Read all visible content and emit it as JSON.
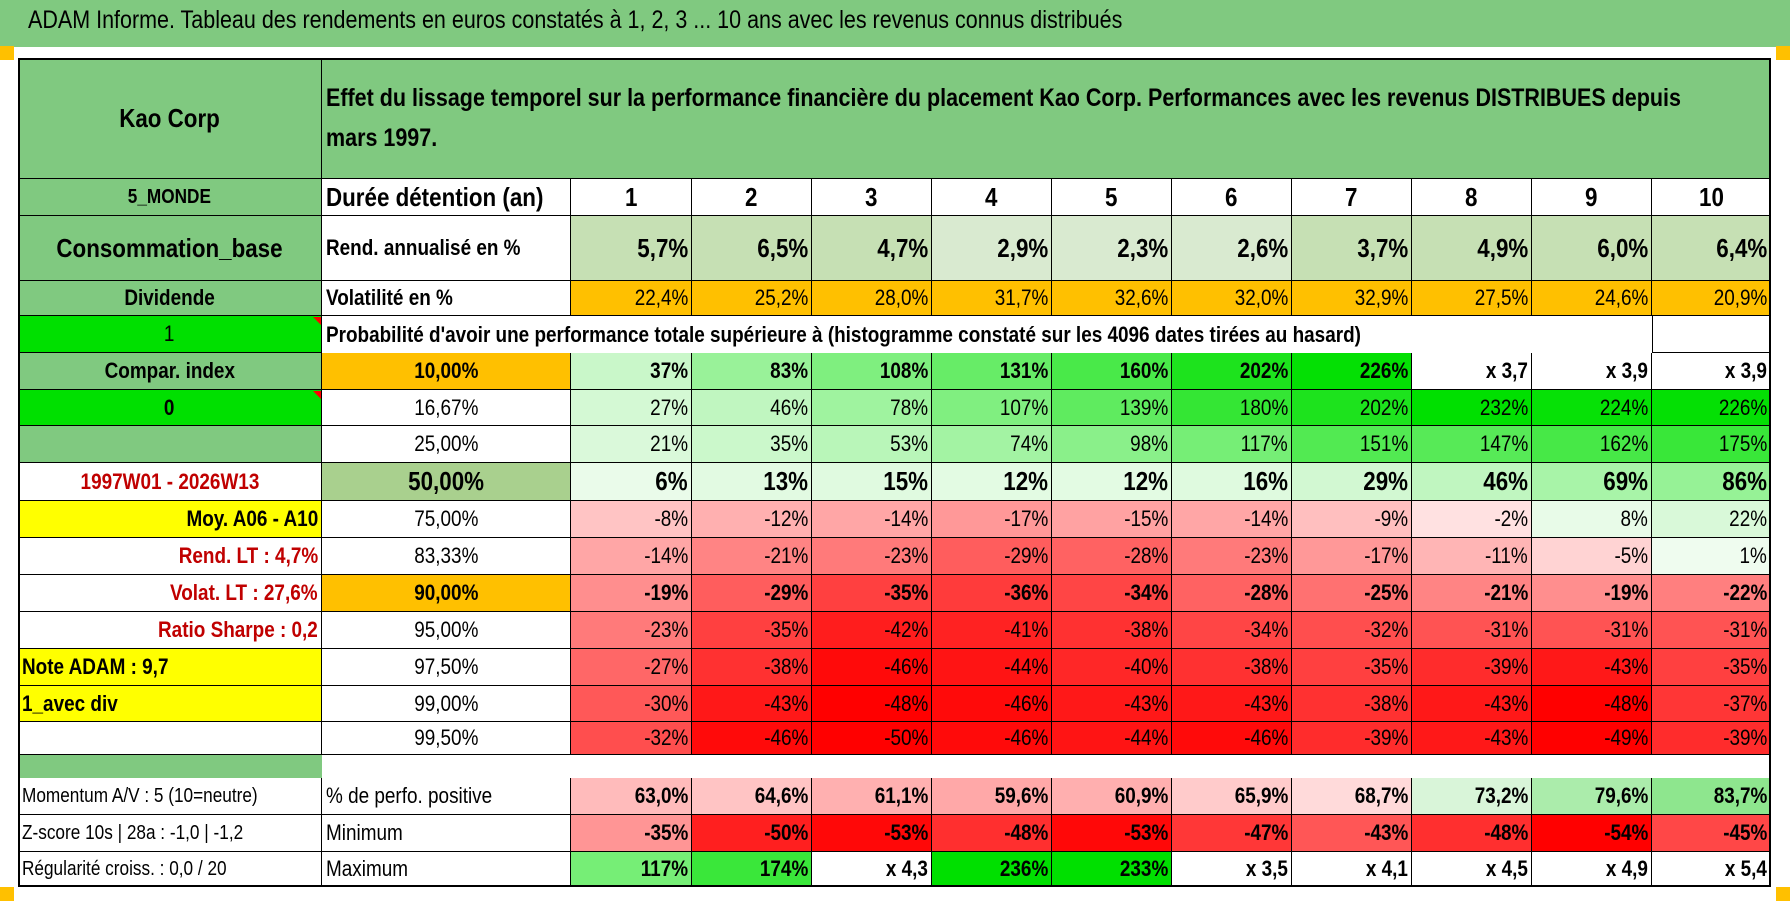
{
  "title": "ADAM Informe. Tableau des rendements en euros constatés à 1, 2, 3 ... 10 ans avec les revenus connus distribués",
  "header": {
    "name": "Kao Corp",
    "description_line1": "Effet du lissage temporel sur la performance financière du placement Kao Corp. Performances avec les revenus DISTRIBUES depuis",
    "description_line2": "mars 1997."
  },
  "left_labels": {
    "region": "5_MONDE",
    "sector": "Consommation_base",
    "strategy": "Dividende",
    "indicator_1": "1",
    "compar_index": "Compar. index",
    "indicator_0": "0",
    "period": "1997W01 - 2026W13",
    "moy": "Moy. A06 - A10",
    "rend_lt": "Rend. LT :   4,7%",
    "volat_lt": "Volat. LT :   27,6%",
    "sharpe": "Ratio Sharpe :    0,2",
    "note": "Note ADAM : 9,7",
    "div_mode": "1_avec div"
  },
  "row_labels": {
    "duration": "Durée détention (an)",
    "rend": "Rend. annualisé en %",
    "volat": "Volatilité en %",
    "proba": "Probabilité d'avoir une performance totale supérieure à (histogramme constaté sur les 4096 dates tirées au hasard)"
  },
  "years": [
    "1",
    "2",
    "3",
    "4",
    "5",
    "6",
    "7",
    "8",
    "9",
    "10"
  ],
  "rend": [
    "5,7%",
    "6,5%",
    "4,7%",
    "2,9%",
    "2,3%",
    "2,6%",
    "3,7%",
    "4,9%",
    "6,0%",
    "6,4%"
  ],
  "volat": [
    "22,4%",
    "25,2%",
    "28,0%",
    "31,7%",
    "32,6%",
    "32,0%",
    "32,9%",
    "27,5%",
    "24,6%",
    "20,9%"
  ],
  "percentiles": [
    {
      "p": "10,00%",
      "vals": [
        "37%",
        "83%",
        "108%",
        "131%",
        "160%",
        "202%",
        "226%",
        "x 3,7",
        "x 3,9",
        "x 3,9"
      ]
    },
    {
      "p": "16,67%",
      "vals": [
        "27%",
        "46%",
        "78%",
        "107%",
        "139%",
        "180%",
        "202%",
        "232%",
        "224%",
        "226%"
      ]
    },
    {
      "p": "25,00%",
      "vals": [
        "21%",
        "35%",
        "53%",
        "74%",
        "98%",
        "117%",
        "151%",
        "147%",
        "162%",
        "175%"
      ]
    },
    {
      "p": "50,00%",
      "vals": [
        "6%",
        "13%",
        "15%",
        "12%",
        "12%",
        "16%",
        "29%",
        "46%",
        "69%",
        "86%"
      ]
    },
    {
      "p": "75,00%",
      "vals": [
        "-8%",
        "-12%",
        "-14%",
        "-17%",
        "-15%",
        "-14%",
        "-9%",
        "-2%",
        "8%",
        "22%"
      ]
    },
    {
      "p": "83,33%",
      "vals": [
        "-14%",
        "-21%",
        "-23%",
        "-29%",
        "-28%",
        "-23%",
        "-17%",
        "-11%",
        "-5%",
        "1%"
      ]
    },
    {
      "p": "90,00%",
      "vals": [
        "-19%",
        "-29%",
        "-35%",
        "-36%",
        "-34%",
        "-28%",
        "-25%",
        "-21%",
        "-19%",
        "-22%"
      ]
    },
    {
      "p": "95,00%",
      "vals": [
        "-23%",
        "-35%",
        "-42%",
        "-41%",
        "-38%",
        "-34%",
        "-32%",
        "-31%",
        "-31%",
        "-31%"
      ]
    },
    {
      "p": "97,50%",
      "vals": [
        "-27%",
        "-38%",
        "-46%",
        "-44%",
        "-40%",
        "-38%",
        "-35%",
        "-39%",
        "-43%",
        "-35%"
      ]
    },
    {
      "p": "99,00%",
      "vals": [
        "-30%",
        "-43%",
        "-48%",
        "-46%",
        "-43%",
        "-43%",
        "-38%",
        "-43%",
        "-48%",
        "-37%"
      ]
    },
    {
      "p": "99,50%",
      "vals": [
        "-32%",
        "-46%",
        "-50%",
        "-46%",
        "-44%",
        "-46%",
        "-39%",
        "-43%",
        "-49%",
        "-39%"
      ]
    }
  ],
  "bottom": [
    {
      "left": "Momentum A/V : 5 (10=neutre)",
      "label": "% de perfo. positive",
      "vals": [
        "63,0%",
        "64,6%",
        "61,1%",
        "59,6%",
        "60,9%",
        "65,9%",
        "68,7%",
        "73,2%",
        "79,6%",
        "83,7%"
      ]
    },
    {
      "left": "Z-score 10s | 28a : -1,0 | -1,2",
      "label": "Minimum",
      "vals": [
        "-35%",
        "-50%",
        "-53%",
        "-48%",
        "-53%",
        "-47%",
        "-43%",
        "-48%",
        "-54%",
        "-45%"
      ]
    },
    {
      "left": "Régularité croiss. : 0,0 / 20",
      "label": "Maximum",
      "vals": [
        "117%",
        "174%",
        "x 4,3",
        "236%",
        "233%",
        "x 3,5",
        "x 4,1",
        "x 4,5",
        "x 4,9",
        "x 5,4"
      ]
    }
  ],
  "colors": {
    "header_green": "#80c980",
    "bright_green": "#00e000",
    "orange": "#ffc000",
    "yellow": "#ffff00",
    "median_green": "#a9d08e",
    "red": "#ff0000"
  }
}
